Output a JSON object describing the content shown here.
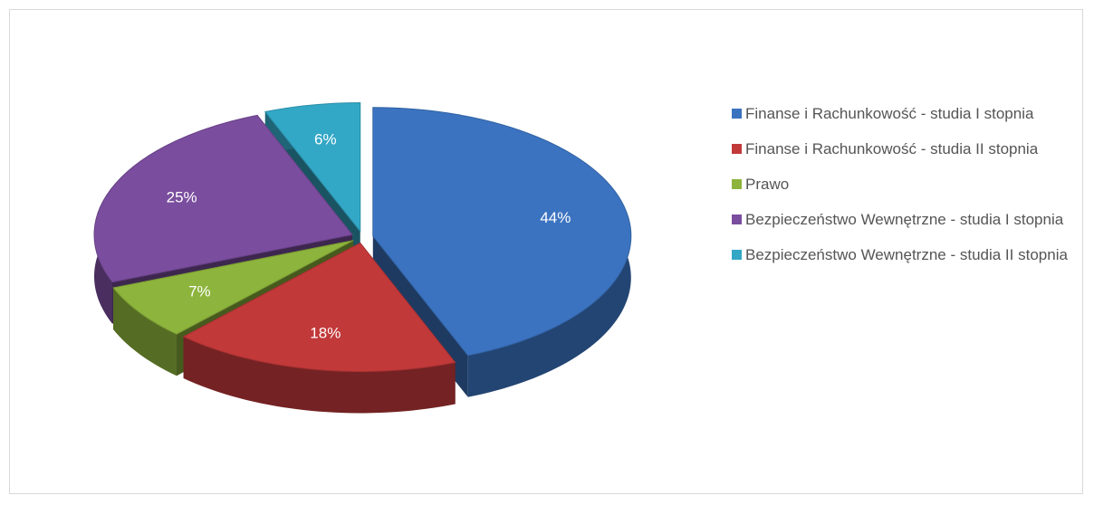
{
  "chart_data": {
    "type": "pie",
    "categories": [
      "Finanse i Rachunkowość - studia I stopnia",
      "Finanse i Rachunkowość - studia II stopnia",
      "Prawo",
      "Bezpieczeństwo Wewnętrzne - studia I stopnia",
      "Bezpieczeństwo Wewnętrzne - studia II stopnia"
    ],
    "values": [
      44,
      18,
      7,
      25,
      6
    ],
    "value_labels": [
      "44%",
      "18%",
      "7%",
      "25%",
      "6%"
    ],
    "colors": [
      "#3b73c0",
      "#c2393a",
      "#8db43c",
      "#7a4d9e",
      "#33a7c6"
    ],
    "legend": "right"
  }
}
